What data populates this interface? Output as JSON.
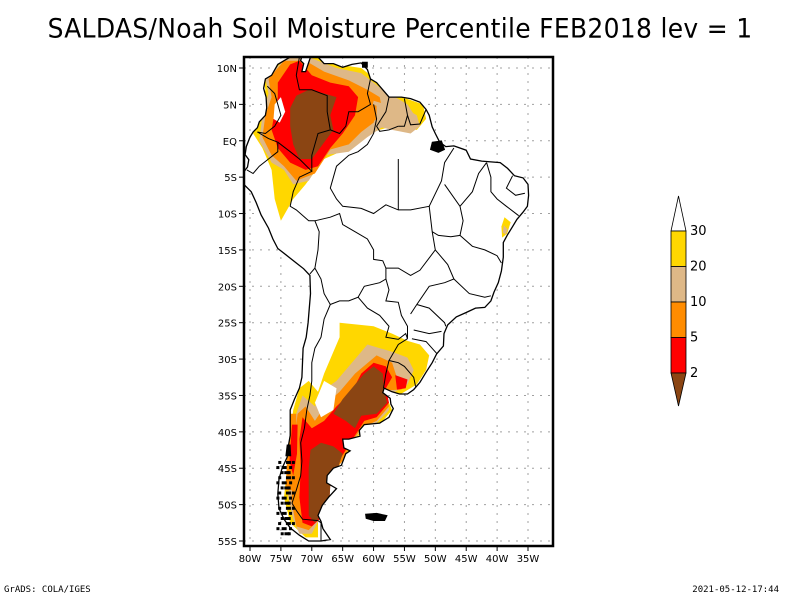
{
  "title": "SALDAS/Noah Soil Moisture Percentile FEB2018 lev = 1",
  "footer": {
    "left": "GrADS: COLA/IGES",
    "right": "2021-05-12-17:44"
  },
  "map": {
    "region": "South America",
    "lat_range": [
      -55,
      10
    ],
    "lon_range": [
      -80,
      -35
    ],
    "lat_ticks": [
      "10N",
      "5N",
      "EQ",
      "5S",
      "10S",
      "15S",
      "20S",
      "25S",
      "30S",
      "35S",
      "40S",
      "45S",
      "50S",
      "55S"
    ],
    "lat_values": [
      10,
      5,
      0,
      -5,
      -10,
      -15,
      -20,
      -25,
      -30,
      -35,
      -40,
      -45,
      -50,
      -55
    ],
    "lon_ticks": [
      "80W",
      "75W",
      "70W",
      "65W",
      "60W",
      "55W",
      "50W",
      "45W",
      "40W",
      "35W"
    ],
    "lon_values": [
      -80,
      -75,
      -70,
      -65,
      -60,
      -55,
      -50,
      -45,
      -40,
      -35
    ],
    "grid": "dotted"
  },
  "colorbar": {
    "orientation": "vertical",
    "placement": "right",
    "levels": [
      "2",
      "5",
      "10",
      "20",
      "30"
    ],
    "bins": [
      {
        "range": "<2",
        "color": "#8b4513"
      },
      {
        "range": "2-5",
        "color": "#ff0000"
      },
      {
        "range": "5-10",
        "color": "#ff8c00"
      },
      {
        "range": "10-20",
        "color": "#deb887"
      },
      {
        "range": "20-30",
        "color": "#ffd700"
      },
      {
        "range": ">30",
        "color": "#ffffff"
      }
    ]
  },
  "colors": {
    "brown": "#8b4513",
    "red": "#ff0000",
    "orange": "#ff8c00",
    "tan": "#deb887",
    "yellow": "#ffd700",
    "grid": "#a0a0a0",
    "border": "#000000"
  }
}
